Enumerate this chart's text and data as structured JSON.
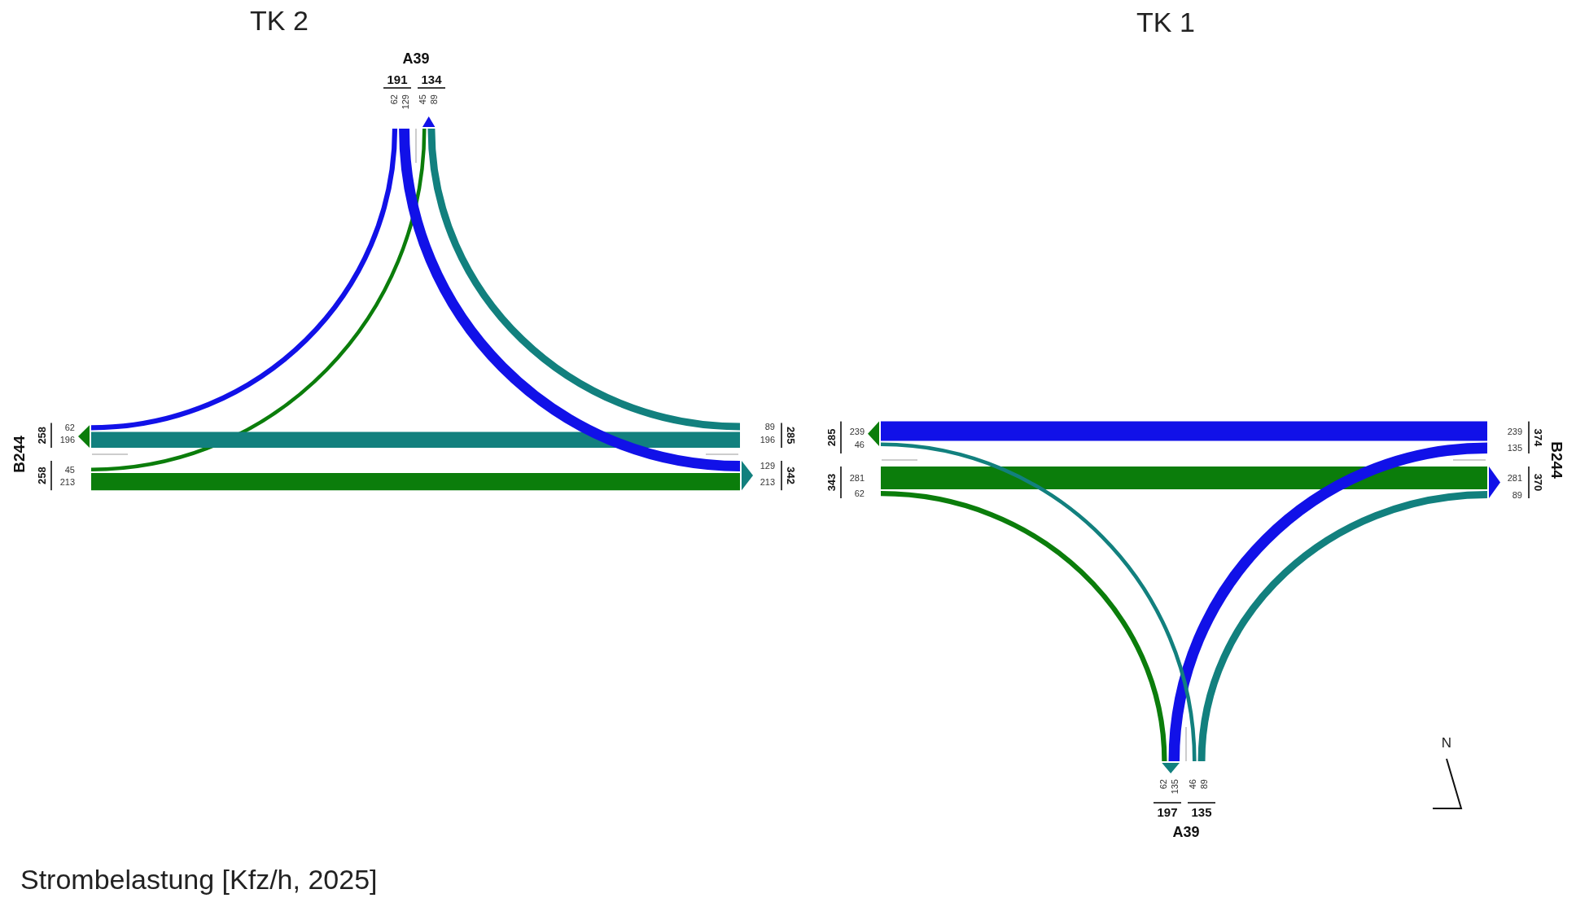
{
  "chart_data": [
    {
      "type": "other",
      "title": "TK 2",
      "categories": [
        "B244",
        "A39"
      ],
      "series": [
        {
          "color": "#0b7d0b",
          "values": [
            213,
            45
          ]
        },
        {
          "color": "#12807e",
          "values": [
            196,
            89
          ]
        },
        {
          "color": "#1111e8",
          "values": [
            null,
            62
          ]
        },
        {
          "color": "#1111e8",
          "values": [
            null,
            129
          ]
        }
      ],
      "data_labels": true,
      "totals": [
        "258",
        "258",
        "285",
        "342",
        "191",
        "134"
      ],
      "annotations": [
        "Strombelastung [Kfz/h, 2025]",
        "213",
        "45",
        "196",
        "89",
        "62",
        "129"
      ]
    },
    {
      "type": "other",
      "title": "TK 1",
      "categories": [
        "B244",
        "A39"
      ],
      "series": [
        {
          "color": "#0b7d0b",
          "values": [
            281,
            62
          ]
        },
        {
          "color": "#1111e8",
          "values": [
            239,
            135
          ]
        },
        {
          "color": "#12807e",
          "values": [
            null,
            46
          ]
        },
        {
          "color": "#12807e",
          "values": [
            null,
            89
          ]
        }
      ],
      "data_labels": true,
      "totals": [
        "343",
        "285",
        "374",
        "370",
        "135",
        "197"
      ],
      "annotations": [
        "N",
        "281",
        "62",
        "239",
        "135",
        "46",
        "89"
      ]
    }
  ]
}
